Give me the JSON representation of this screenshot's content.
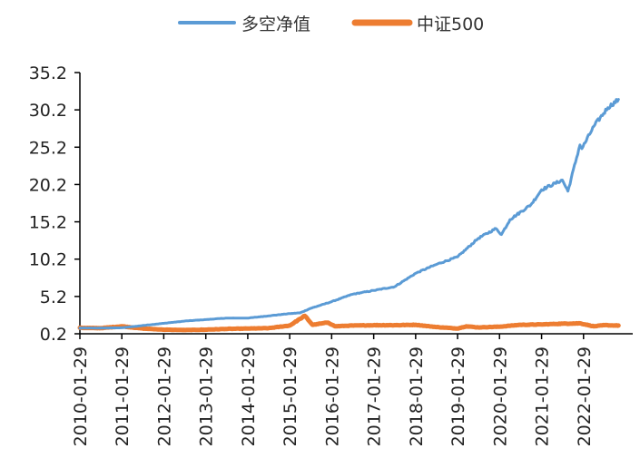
{
  "chart_data": {
    "type": "line",
    "title": "",
    "xlabel": "",
    "ylabel": "",
    "legend_position": "top",
    "grid": false,
    "ylim": [
      0.2,
      35.2
    ],
    "y_ticks": [
      "0.2",
      "5.2",
      "10.2",
      "15.2",
      "20.2",
      "25.2",
      "30.2",
      "35.2"
    ],
    "x_ticks": [
      "2010-01-29",
      "2011-01-29",
      "2012-01-29",
      "2013-01-29",
      "2014-01-29",
      "2015-01-29",
      "2016-01-29",
      "2017-01-29",
      "2018-01-29",
      "2019-01-29",
      "2020-01-29",
      "2021-01-29",
      "2022-01-29"
    ],
    "series": [
      {
        "name": "多空净值",
        "color": "#5B9BD5",
        "points": [
          [
            "2010-01-29",
            0.97
          ],
          [
            "2010-07-29",
            0.97
          ],
          [
            "2011-01-29",
            1.0
          ],
          [
            "2011-07-29",
            1.3
          ],
          [
            "2012-01-29",
            1.6
          ],
          [
            "2012-07-29",
            1.9
          ],
          [
            "2013-01-29",
            2.1
          ],
          [
            "2013-07-29",
            2.3
          ],
          [
            "2014-01-29",
            2.3
          ],
          [
            "2014-07-29",
            2.6
          ],
          [
            "2015-01-29",
            2.9
          ],
          [
            "2015-04-29",
            3.0
          ],
          [
            "2015-07-29",
            3.6
          ],
          [
            "2016-01-29",
            4.5
          ],
          [
            "2016-07-29",
            5.5
          ],
          [
            "2017-01-29",
            6.0
          ],
          [
            "2017-07-29",
            6.5
          ],
          [
            "2018-01-29",
            8.3
          ],
          [
            "2018-07-29",
            9.5
          ],
          [
            "2019-01-29",
            10.5
          ],
          [
            "2019-07-29",
            13.0
          ],
          [
            "2019-12-29",
            14.3
          ],
          [
            "2020-02-15",
            13.5
          ],
          [
            "2020-04-29",
            15.5
          ],
          [
            "2020-10-29",
            17.5
          ],
          [
            "2021-01-29",
            19.5
          ],
          [
            "2021-07-29",
            20.8
          ],
          [
            "2021-09-15",
            19.3
          ],
          [
            "2021-12-29",
            25.5
          ],
          [
            "2022-01-15",
            25.0
          ],
          [
            "2022-04-29",
            28.0
          ],
          [
            "2022-08-29",
            30.5
          ],
          [
            "2022-11-29",
            31.6
          ]
        ]
      },
      {
        "name": "中证500",
        "color": "#ED7D31",
        "points": [
          [
            "2010-01-29",
            1.0
          ],
          [
            "2010-07-29",
            0.95
          ],
          [
            "2011-01-29",
            1.2
          ],
          [
            "2011-07-29",
            0.9
          ],
          [
            "2012-01-29",
            0.75
          ],
          [
            "2012-07-29",
            0.7
          ],
          [
            "2013-01-29",
            0.75
          ],
          [
            "2013-07-29",
            0.85
          ],
          [
            "2014-01-29",
            0.9
          ],
          [
            "2014-07-29",
            0.95
          ],
          [
            "2015-01-29",
            1.3
          ],
          [
            "2015-04-29",
            2.2
          ],
          [
            "2015-06-10",
            2.6
          ],
          [
            "2015-08-15",
            1.4
          ],
          [
            "2015-12-29",
            1.7
          ],
          [
            "2016-02-29",
            1.2
          ],
          [
            "2016-07-29",
            1.3
          ],
          [
            "2017-01-29",
            1.35
          ],
          [
            "2017-07-29",
            1.35
          ],
          [
            "2018-01-29",
            1.4
          ],
          [
            "2018-07-29",
            1.1
          ],
          [
            "2019-01-29",
            0.9
          ],
          [
            "2019-04-15",
            1.2
          ],
          [
            "2019-07-29",
            1.05
          ],
          [
            "2020-01-29",
            1.15
          ],
          [
            "2020-07-29",
            1.4
          ],
          [
            "2021-01-29",
            1.45
          ],
          [
            "2021-07-29",
            1.55
          ],
          [
            "2021-12-29",
            1.6
          ],
          [
            "2022-04-29",
            1.2
          ],
          [
            "2022-07-29",
            1.35
          ],
          [
            "2022-11-29",
            1.3
          ]
        ]
      }
    ]
  }
}
